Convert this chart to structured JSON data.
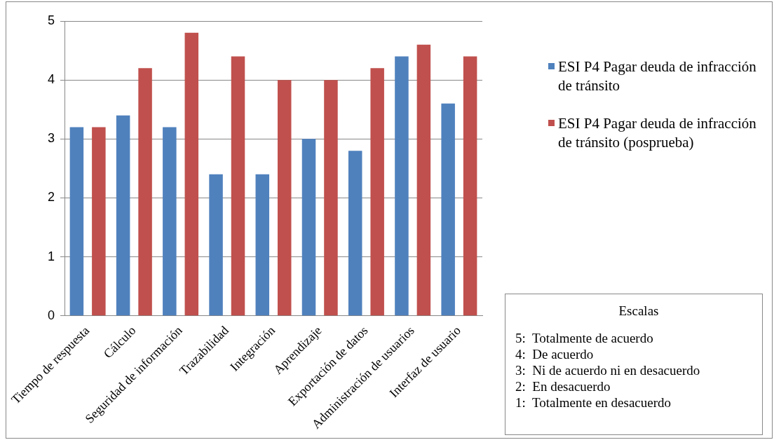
{
  "chart_data": {
    "type": "bar",
    "categories": [
      "Tiempo de respuesta",
      "Cálculo",
      "Seguridad de información",
      "Trazabilidad",
      "Integración",
      "Aprendizaje",
      "Exportación de datos",
      "Administración de usuarios",
      "Interfaz de usuario"
    ],
    "series": [
      {
        "name": "ESI P4 Pagar deuda de infracción de tránsito",
        "color": "#4f81bd",
        "values": [
          3.2,
          3.4,
          3.2,
          2.4,
          2.4,
          3.0,
          2.8,
          4.4,
          3.6
        ]
      },
      {
        "name": "ESI P4 Pagar deuda de infracción de tránsito (posprueba)",
        "color": "#c0504d",
        "values": [
          3.2,
          4.2,
          4.8,
          4.4,
          4.0,
          4.0,
          4.2,
          4.6,
          4.4
        ]
      }
    ],
    "ylim": [
      0,
      5
    ],
    "yticks": [
      0,
      1,
      2,
      3,
      4,
      5
    ],
    "grid": "y",
    "legend": "right",
    "annotations": [
      "Escalas",
      "5:  Totalmente de acuerdo",
      "4:  De acuerdo",
      "3:  Ni de acuerdo ni en desacuerdo",
      "2:  En desacuerdo",
      "1:  Totalmente en desacuerdo"
    ]
  }
}
